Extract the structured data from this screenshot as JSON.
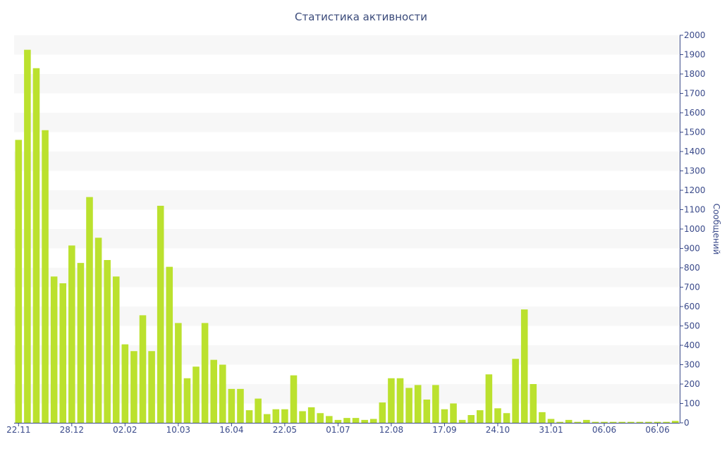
{
  "chart_data": {
    "type": "bar",
    "title": "Статистика активности",
    "ylabel": "Сообщений",
    "xlabel": "",
    "ylim": [
      0,
      2000
    ],
    "yticks": [
      0,
      100,
      200,
      300,
      400,
      500,
      600,
      700,
      800,
      900,
      1000,
      1100,
      1200,
      1300,
      1400,
      1500,
      1600,
      1700,
      1800,
      1900,
      2000
    ],
    "xtick_labels": [
      "22.11",
      "28.12",
      "02.02",
      "10.03",
      "16.04",
      "22.05",
      "01.07",
      "12.08",
      "17.09",
      "24.10",
      "31.01",
      "06.06",
      "06.06"
    ],
    "xtick_positions": [
      0,
      6,
      12,
      18,
      24,
      30,
      36,
      42,
      48,
      54,
      60,
      66,
      72
    ],
    "values": [
      1460,
      1925,
      1830,
      1510,
      755,
      720,
      915,
      825,
      1165,
      955,
      840,
      755,
      405,
      370,
      555,
      370,
      1120,
      805,
      515,
      230,
      290,
      515,
      325,
      300,
      175,
      175,
      65,
      125,
      45,
      70,
      70,
      245,
      60,
      80,
      50,
      35,
      15,
      25,
      25,
      15,
      20,
      105,
      230,
      230,
      180,
      195,
      120,
      195,
      70,
      100,
      15,
      40,
      65,
      250,
      75,
      50,
      330,
      585,
      200,
      55,
      20,
      5,
      15,
      5,
      15,
      5,
      5,
      5,
      5,
      5,
      5,
      5,
      5,
      5,
      10
    ],
    "bar_color": "#bbe12e",
    "band_color": "#f7f7f7",
    "axis_color": "#3a4a8a",
    "grid": "alternating-bands",
    "legend": "none",
    "y_axis_side": "right"
  }
}
